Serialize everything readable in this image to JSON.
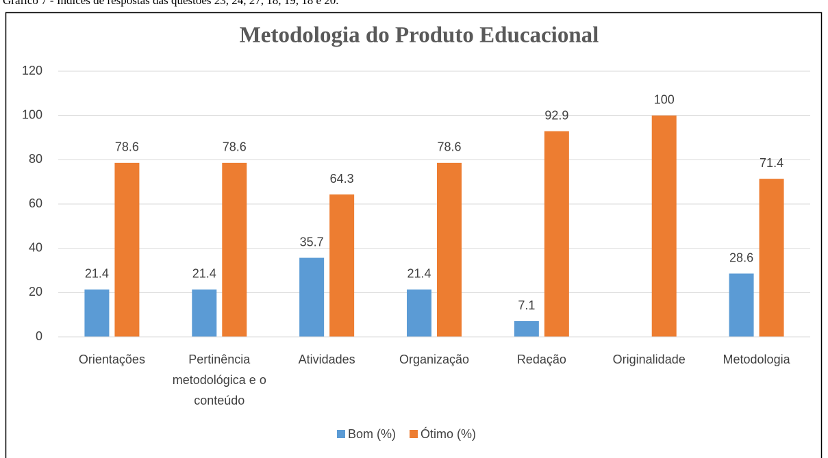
{
  "caption": "Gráfico 7 - Índices de respostas das questões 23, 24, 27, 18, 19, 18 e 20.",
  "chart_data": {
    "type": "bar",
    "title": "Metodologia do Produto Educacional",
    "categories": [
      "Orientações",
      "Pertinência metodológica e o conteúdo",
      "Atividades",
      "Organização",
      "Redação",
      "Originalidade",
      "Metodologia"
    ],
    "series": [
      {
        "name": "Bom (%)",
        "color": "#5b9bd5",
        "values": [
          21.4,
          21.4,
          35.7,
          21.4,
          7.1,
          null,
          28.6
        ]
      },
      {
        "name": "Ótimo (%)",
        "color": "#ed7d31",
        "values": [
          78.6,
          78.6,
          64.3,
          78.6,
          92.9,
          100,
          71.4
        ]
      }
    ],
    "ylim": [
      0,
      120
    ],
    "yticks": [
      0,
      20,
      40,
      60,
      80,
      100,
      120
    ],
    "grid": true,
    "legend": "bottom"
  }
}
